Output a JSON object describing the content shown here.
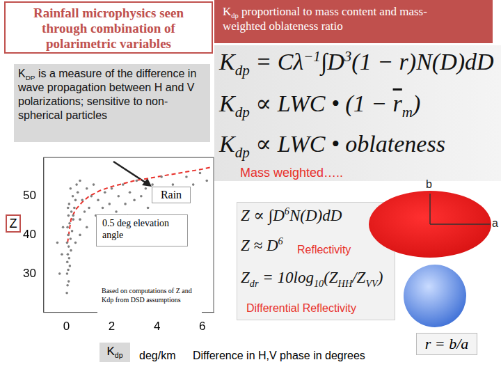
{
  "slide": {
    "title": "Rainfall microphysics seen through combination of polarimetric variables",
    "header": [
      "K",
      {
        "sub": "dp"
      },
      " proportional to mass content and mass-weighted oblateness ratio"
    ],
    "description": [
      "K",
      {
        "sub": "DP"
      },
      " is a measure of the difference in wave propagation between H and V polarizations; sensitive to non-spherical particles"
    ],
    "kdp_formulas": [
      [
        "K",
        {
          "sub": "dp"
        },
        " = Cλ",
        {
          "sup": "−1"
        },
        "∫D",
        {
          "sup": "3"
        },
        "(1 − r)N(D)dD"
      ],
      [
        "K",
        {
          "sub": "dp"
        },
        " ∝ LWC • (1 − ",
        {
          "over": "r"
        },
        {
          "sub": "m"
        },
        ")"
      ],
      [
        "K",
        {
          "sub": "dp"
        },
        " ∝ LWC • oblateness"
      ]
    ],
    "kdp_note": "Mass weighted…..",
    "z_formulas": [
      [
        "Z ∝ ∫D",
        {
          "sup": "6"
        },
        "N(D)dD"
      ],
      [
        "Z ≈ D",
        {
          "sup": "6"
        }
      ],
      [
        "Z",
        {
          "sub": "dr"
        },
        " = 10log",
        {
          "sub": "10"
        },
        "(Z",
        {
          "sub": "HH"
        },
        "/Z",
        {
          "sub": "VV"
        },
        ")"
      ]
    ],
    "z_labels": [
      "Reflectivity",
      "Differential Reflectivity"
    ],
    "drop_axes": [
      "b",
      "a"
    ],
    "ratio": "r = b/a",
    "footer": "Difference in H,V phase in degrees"
  },
  "chart_data": {
    "type": "scatter",
    "ylabel": "Z",
    "xlabel": [
      "K",
      {
        "sub": "dp"
      }
    ],
    "xlabel_unit": "deg/km",
    "annotations": [
      "Rain",
      "0.5 deg elevation angle",
      "Based on computations of Z and Kdp from DSD assumptions"
    ],
    "xlim": [
      -1,
      6.5
    ],
    "xticks": [
      0,
      2,
      4,
      6
    ],
    "ylim": [
      20,
      60
    ],
    "yticks": [
      30,
      40,
      50
    ],
    "grid": false,
    "legend": false,
    "series": [
      {
        "color": "#7f7f7f",
        "marker": "circle",
        "x": [
          0.02,
          0.05,
          0.1,
          0.03,
          0.08,
          0.15,
          0.04,
          0.12,
          0.06,
          0.2,
          0.1,
          0.03,
          0.18,
          0.08,
          0.25,
          0.05,
          0.14,
          0.3,
          0.09,
          0.22,
          0.35,
          0.12,
          0.4,
          0.28,
          0.5,
          0.18,
          0.45,
          0.6,
          0.3,
          0.07,
          0.6,
          0.8,
          0.7,
          1.0,
          1.1,
          0.9,
          1.3,
          1.4,
          1.2,
          1.6,
          1.7,
          1.9,
          2.0,
          2.2,
          2.3,
          2.5,
          2.6,
          2.8,
          3.0,
          3.1,
          3.3,
          3.5,
          3.6,
          3.8,
          4.0,
          4.2,
          4.4,
          4.7,
          5.0,
          5.3,
          5.6,
          5.9,
          6.2,
          0.9,
          1.5,
          2.1,
          2.7,
          0.4,
          0.6,
          1.8,
          -0.3,
          -0.2,
          -0.4,
          -0.15
        ],
        "y": [
          25,
          27,
          28,
          30,
          31,
          32,
          33,
          34,
          35,
          36,
          37,
          38,
          39,
          40,
          41,
          42,
          43,
          44,
          45,
          46,
          47,
          48,
          49,
          50,
          51,
          52,
          53,
          54,
          45,
          47,
          44,
          46,
          49,
          47,
          50,
          52,
          45,
          49,
          53,
          47,
          51,
          48,
          52,
          46,
          50,
          53,
          48,
          51,
          49,
          54,
          50,
          52,
          47,
          53,
          50,
          55,
          51,
          53,
          52,
          55,
          53,
          56,
          54,
          42,
          43,
          44,
          45,
          38,
          40,
          41,
          30,
          35,
          38,
          42
        ]
      },
      {
        "type": "line",
        "color": "#e8302a",
        "line_style": "dashed",
        "x": [
          0.05,
          0.2,
          0.4,
          0.7,
          1,
          1.5,
          2,
          3,
          4,
          5,
          6,
          6.4
        ],
        "y": [
          38,
          44,
          46.5,
          48.5,
          50,
          51.5,
          52.5,
          54,
          55,
          56,
          57,
          57.5
        ]
      }
    ]
  }
}
